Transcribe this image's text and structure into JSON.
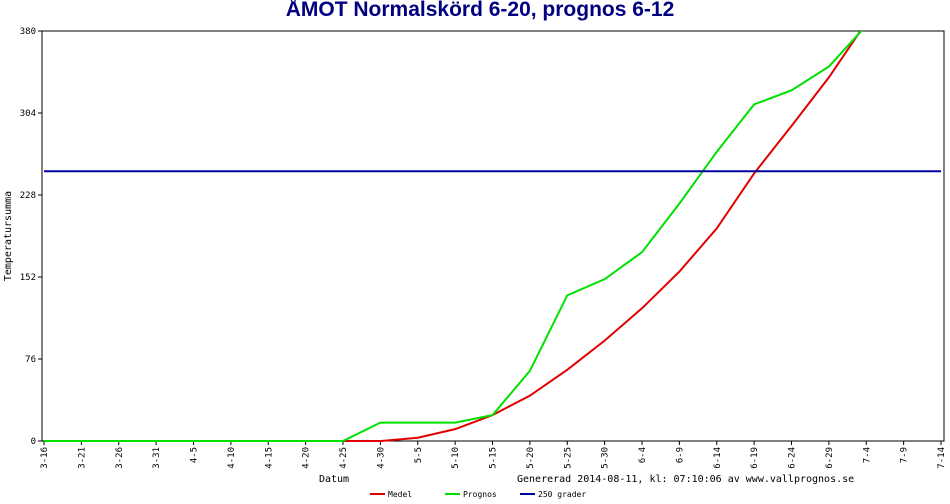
{
  "chart_data": {
    "type": "line",
    "title": "ÅMOT Normalskörd 6-20, prognos 6-12",
    "y_label": "Temperatursumma",
    "x_label": "Datum",
    "footer": "Genererad 2014-08-11, kl: 07:10:06 av www.vallprognos.se",
    "categories": [
      "3-16",
      "3-21",
      "3-26",
      "3-31",
      "4-5",
      "4-10",
      "4-15",
      "4-20",
      "4-25",
      "4-30",
      "5-5",
      "5-10",
      "5-15",
      "5-20",
      "5-25",
      "5-30",
      "6-4",
      "6-9",
      "6-14",
      "6-19",
      "6-24",
      "6-29",
      "7-4",
      "7-9",
      "7-14"
    ],
    "series": [
      {
        "name": "Medel",
        "color": "#e00000",
        "values": [
          0,
          0,
          0,
          0,
          0,
          0,
          0,
          0,
          0,
          0,
          3,
          11,
          24,
          42,
          66,
          93,
          123,
          157,
          197,
          248,
          292,
          337,
          388,
          null,
          null
        ]
      },
      {
        "name": "Prognos",
        "color": "#00e000",
        "values": [
          0,
          0,
          0,
          0,
          0,
          0,
          0,
          0,
          0,
          17,
          17,
          17,
          24,
          65,
          135,
          150,
          175,
          220,
          268,
          312,
          325,
          347,
          385,
          null,
          null
        ]
      },
      {
        "name": "250 grader",
        "color": "#0000a0",
        "values": [
          250,
          250,
          250,
          250,
          250,
          250,
          250,
          250,
          250,
          250,
          250,
          250,
          250,
          250,
          250,
          250,
          250,
          250,
          250,
          250,
          250,
          250,
          250,
          250,
          250
        ]
      }
    ],
    "ylim": [
      0,
      380
    ],
    "yticks": [
      0,
      76,
      152,
      228,
      304,
      380
    ]
  }
}
